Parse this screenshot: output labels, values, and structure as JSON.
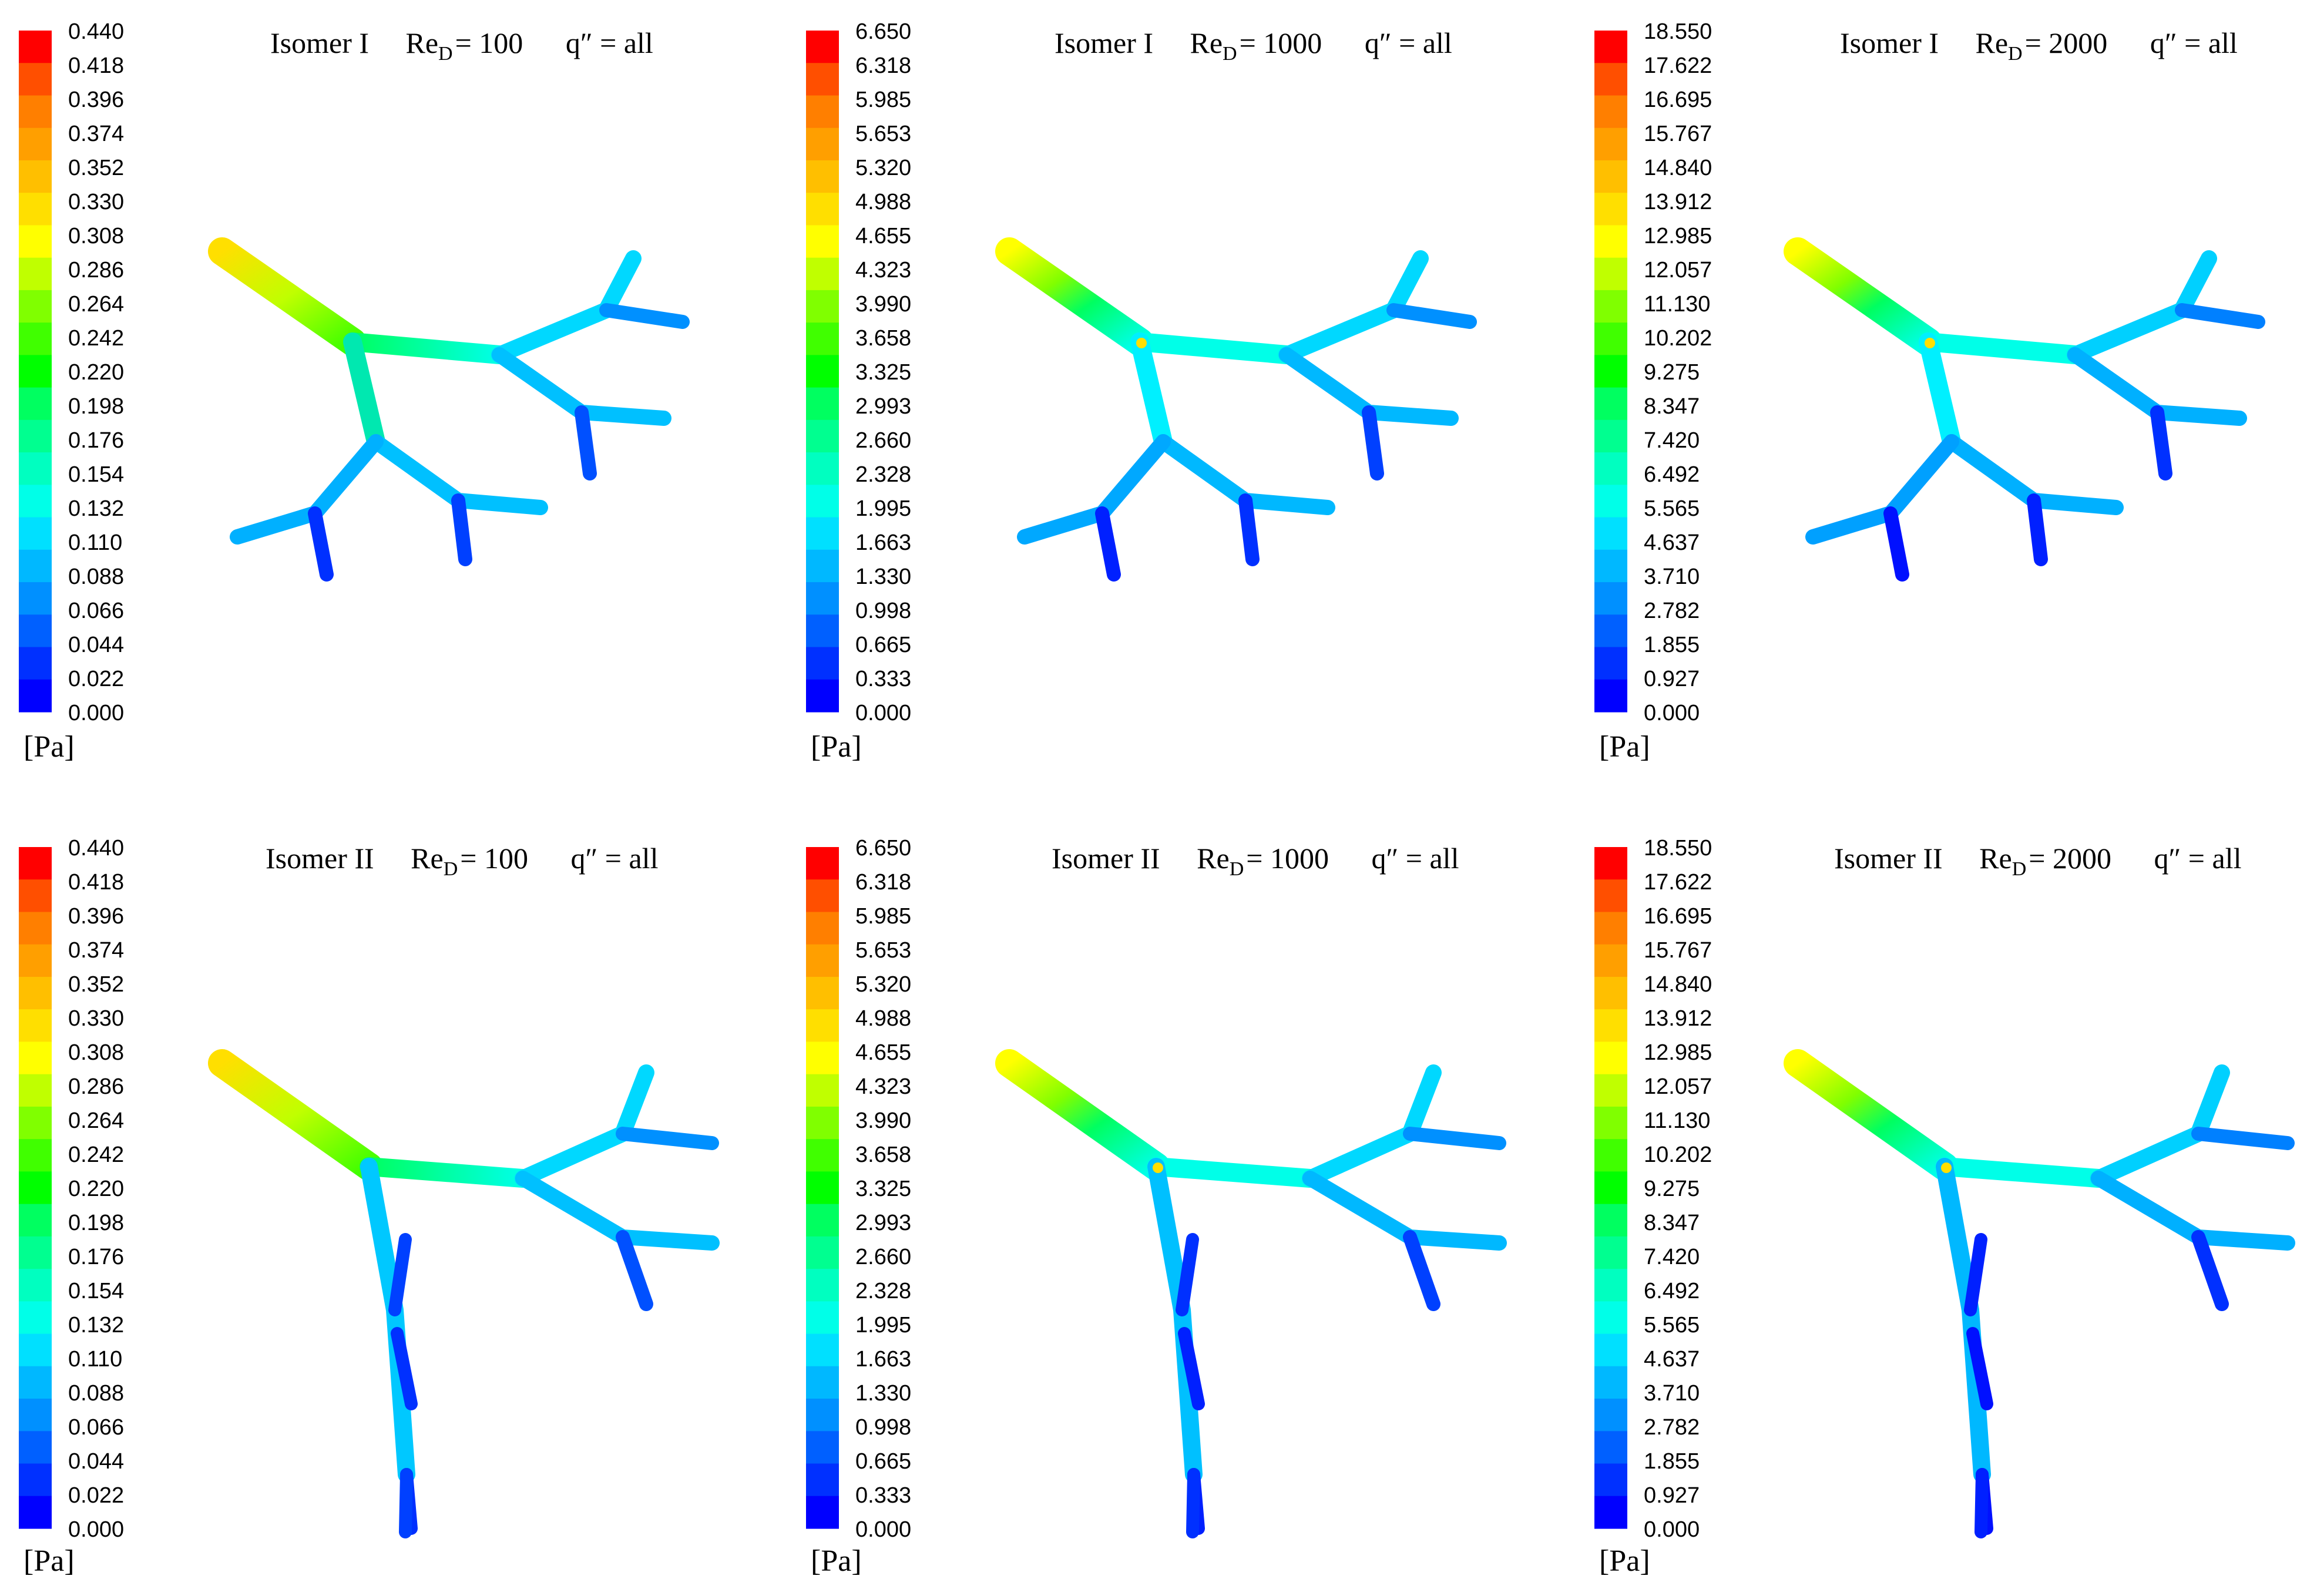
{
  "colormap": {
    "bands": [
      "#0000ff",
      "#0030ff",
      "#0060ff",
      "#0090ff",
      "#00b8ff",
      "#00e0ff",
      "#00ffe8",
      "#00ffc0",
      "#00ff90",
      "#00ff60",
      "#00ff00",
      "#40ff00",
      "#80ff00",
      "#c0ff00",
      "#ffff00",
      "#ffdf00",
      "#ffbf00",
      "#ff9f00",
      "#ff7f00",
      "#ff4f00",
      "#ff0000"
    ]
  },
  "panels": [
    {
      "isomer": "Isomer I",
      "re_label": "Re",
      "re_sub": "D",
      "re_value": "= 100",
      "q_label": "q″ = all",
      "unit": "[Pa]",
      "ticks": [
        "0.440",
        "0.418",
        "0.396",
        "0.374",
        "0.352",
        "0.330",
        "0.308",
        "0.286",
        "0.264",
        "0.242",
        "0.220",
        "0.198",
        "0.176",
        "0.154",
        "0.132",
        "0.110",
        "0.088",
        "0.066",
        "0.044",
        "0.022",
        "0.000"
      ]
    },
    {
      "isomer": "Isomer I",
      "re_label": "Re",
      "re_sub": "D",
      "re_value": "= 1000",
      "q_label": "q″ = all",
      "unit": "[Pa]",
      "ticks": [
        "6.650",
        "6.318",
        "5.985",
        "5.653",
        "5.320",
        "4.988",
        "4.655",
        "4.323",
        "3.990",
        "3.658",
        "3.325",
        "2.993",
        "2.660",
        "2.328",
        "1.995",
        "1.663",
        "1.330",
        "0.998",
        "0.665",
        "0.333",
        "0.000"
      ]
    },
    {
      "isomer": "Isomer I",
      "re_label": "Re",
      "re_sub": "D",
      "re_value": "= 2000",
      "q_label": "q″ = all",
      "unit": "[Pa]",
      "ticks": [
        "18.550",
        "17.622",
        "16.695",
        "15.767",
        "14.840",
        "13.912",
        "12.985",
        "12.057",
        "11.130",
        "10.202",
        "9.275",
        "8.347",
        "7.420",
        "6.492",
        "5.565",
        "4.637",
        "3.710",
        "2.782",
        "1.855",
        "0.927",
        "0.000"
      ]
    },
    {
      "isomer": "Isomer II",
      "re_label": "Re",
      "re_sub": "D",
      "re_value": "= 100",
      "q_label": "q″ = all",
      "unit": "[Pa]",
      "ticks": [
        "0.440",
        "0.418",
        "0.396",
        "0.374",
        "0.352",
        "0.330",
        "0.308",
        "0.286",
        "0.264",
        "0.242",
        "0.220",
        "0.198",
        "0.176",
        "0.154",
        "0.132",
        "0.110",
        "0.088",
        "0.066",
        "0.044",
        "0.022",
        "0.000"
      ]
    },
    {
      "isomer": "Isomer II",
      "re_label": "Re",
      "re_sub": "D",
      "re_value": "= 1000",
      "q_label": "q″ = all",
      "unit": "[Pa]",
      "ticks": [
        "6.650",
        "6.318",
        "5.985",
        "5.653",
        "5.320",
        "4.988",
        "4.655",
        "4.323",
        "3.990",
        "3.658",
        "3.325",
        "2.993",
        "2.660",
        "2.328",
        "1.995",
        "1.663",
        "1.330",
        "0.998",
        "0.665",
        "0.333",
        "0.000"
      ]
    },
    {
      "isomer": "Isomer II",
      "re_label": "Re",
      "re_sub": "D",
      "re_value": "= 2000",
      "q_label": "q″ = all",
      "unit": "[Pa]",
      "ticks": [
        "18.550",
        "17.622",
        "16.695",
        "15.767",
        "14.840",
        "13.912",
        "12.985",
        "12.057",
        "11.130",
        "10.202",
        "9.275",
        "8.347",
        "7.420",
        "6.492",
        "5.565",
        "4.637",
        "3.710",
        "2.782",
        "1.855",
        "0.927",
        "0.000"
      ]
    }
  ]
}
